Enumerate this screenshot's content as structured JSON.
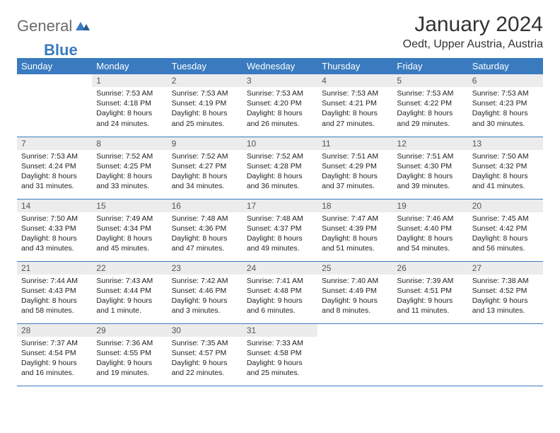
{
  "logo": {
    "text1": "General",
    "text2": "Blue"
  },
  "title": "January 2024",
  "location": "Oedt, Upper Austria, Austria",
  "colors": {
    "header_bg": "#3a7bbf",
    "header_text": "#ffffff",
    "daynum_bg": "#ececec",
    "row_border": "#3a7bbf",
    "logo_gray": "#6b6b6b",
    "logo_blue": "#3a7bbf"
  },
  "weekdays": [
    "Sunday",
    "Monday",
    "Tuesday",
    "Wednesday",
    "Thursday",
    "Friday",
    "Saturday"
  ],
  "weeks": [
    [
      {
        "day": "",
        "lines": []
      },
      {
        "day": "1",
        "lines": [
          "Sunrise: 7:53 AM",
          "Sunset: 4:18 PM",
          "Daylight: 8 hours",
          "and 24 minutes."
        ]
      },
      {
        "day": "2",
        "lines": [
          "Sunrise: 7:53 AM",
          "Sunset: 4:19 PM",
          "Daylight: 8 hours",
          "and 25 minutes."
        ]
      },
      {
        "day": "3",
        "lines": [
          "Sunrise: 7:53 AM",
          "Sunset: 4:20 PM",
          "Daylight: 8 hours",
          "and 26 minutes."
        ]
      },
      {
        "day": "4",
        "lines": [
          "Sunrise: 7:53 AM",
          "Sunset: 4:21 PM",
          "Daylight: 8 hours",
          "and 27 minutes."
        ]
      },
      {
        "day": "5",
        "lines": [
          "Sunrise: 7:53 AM",
          "Sunset: 4:22 PM",
          "Daylight: 8 hours",
          "and 29 minutes."
        ]
      },
      {
        "day": "6",
        "lines": [
          "Sunrise: 7:53 AM",
          "Sunset: 4:23 PM",
          "Daylight: 8 hours",
          "and 30 minutes."
        ]
      }
    ],
    [
      {
        "day": "7",
        "lines": [
          "Sunrise: 7:53 AM",
          "Sunset: 4:24 PM",
          "Daylight: 8 hours",
          "and 31 minutes."
        ]
      },
      {
        "day": "8",
        "lines": [
          "Sunrise: 7:52 AM",
          "Sunset: 4:25 PM",
          "Daylight: 8 hours",
          "and 33 minutes."
        ]
      },
      {
        "day": "9",
        "lines": [
          "Sunrise: 7:52 AM",
          "Sunset: 4:27 PM",
          "Daylight: 8 hours",
          "and 34 minutes."
        ]
      },
      {
        "day": "10",
        "lines": [
          "Sunrise: 7:52 AM",
          "Sunset: 4:28 PM",
          "Daylight: 8 hours",
          "and 36 minutes."
        ]
      },
      {
        "day": "11",
        "lines": [
          "Sunrise: 7:51 AM",
          "Sunset: 4:29 PM",
          "Daylight: 8 hours",
          "and 37 minutes."
        ]
      },
      {
        "day": "12",
        "lines": [
          "Sunrise: 7:51 AM",
          "Sunset: 4:30 PM",
          "Daylight: 8 hours",
          "and 39 minutes."
        ]
      },
      {
        "day": "13",
        "lines": [
          "Sunrise: 7:50 AM",
          "Sunset: 4:32 PM",
          "Daylight: 8 hours",
          "and 41 minutes."
        ]
      }
    ],
    [
      {
        "day": "14",
        "lines": [
          "Sunrise: 7:50 AM",
          "Sunset: 4:33 PM",
          "Daylight: 8 hours",
          "and 43 minutes."
        ]
      },
      {
        "day": "15",
        "lines": [
          "Sunrise: 7:49 AM",
          "Sunset: 4:34 PM",
          "Daylight: 8 hours",
          "and 45 minutes."
        ]
      },
      {
        "day": "16",
        "lines": [
          "Sunrise: 7:48 AM",
          "Sunset: 4:36 PM",
          "Daylight: 8 hours",
          "and 47 minutes."
        ]
      },
      {
        "day": "17",
        "lines": [
          "Sunrise: 7:48 AM",
          "Sunset: 4:37 PM",
          "Daylight: 8 hours",
          "and 49 minutes."
        ]
      },
      {
        "day": "18",
        "lines": [
          "Sunrise: 7:47 AM",
          "Sunset: 4:39 PM",
          "Daylight: 8 hours",
          "and 51 minutes."
        ]
      },
      {
        "day": "19",
        "lines": [
          "Sunrise: 7:46 AM",
          "Sunset: 4:40 PM",
          "Daylight: 8 hours",
          "and 54 minutes."
        ]
      },
      {
        "day": "20",
        "lines": [
          "Sunrise: 7:45 AM",
          "Sunset: 4:42 PM",
          "Daylight: 8 hours",
          "and 56 minutes."
        ]
      }
    ],
    [
      {
        "day": "21",
        "lines": [
          "Sunrise: 7:44 AM",
          "Sunset: 4:43 PM",
          "Daylight: 8 hours",
          "and 58 minutes."
        ]
      },
      {
        "day": "22",
        "lines": [
          "Sunrise: 7:43 AM",
          "Sunset: 4:44 PM",
          "Daylight: 9 hours",
          "and 1 minute."
        ]
      },
      {
        "day": "23",
        "lines": [
          "Sunrise: 7:42 AM",
          "Sunset: 4:46 PM",
          "Daylight: 9 hours",
          "and 3 minutes."
        ]
      },
      {
        "day": "24",
        "lines": [
          "Sunrise: 7:41 AM",
          "Sunset: 4:48 PM",
          "Daylight: 9 hours",
          "and 6 minutes."
        ]
      },
      {
        "day": "25",
        "lines": [
          "Sunrise: 7:40 AM",
          "Sunset: 4:49 PM",
          "Daylight: 9 hours",
          "and 8 minutes."
        ]
      },
      {
        "day": "26",
        "lines": [
          "Sunrise: 7:39 AM",
          "Sunset: 4:51 PM",
          "Daylight: 9 hours",
          "and 11 minutes."
        ]
      },
      {
        "day": "27",
        "lines": [
          "Sunrise: 7:38 AM",
          "Sunset: 4:52 PM",
          "Daylight: 9 hours",
          "and 13 minutes."
        ]
      }
    ],
    [
      {
        "day": "28",
        "lines": [
          "Sunrise: 7:37 AM",
          "Sunset: 4:54 PM",
          "Daylight: 9 hours",
          "and 16 minutes."
        ]
      },
      {
        "day": "29",
        "lines": [
          "Sunrise: 7:36 AM",
          "Sunset: 4:55 PM",
          "Daylight: 9 hours",
          "and 19 minutes."
        ]
      },
      {
        "day": "30",
        "lines": [
          "Sunrise: 7:35 AM",
          "Sunset: 4:57 PM",
          "Daylight: 9 hours",
          "and 22 minutes."
        ]
      },
      {
        "day": "31",
        "lines": [
          "Sunrise: 7:33 AM",
          "Sunset: 4:58 PM",
          "Daylight: 9 hours",
          "and 25 minutes."
        ]
      },
      {
        "day": "",
        "lines": []
      },
      {
        "day": "",
        "lines": []
      },
      {
        "day": "",
        "lines": []
      }
    ]
  ]
}
